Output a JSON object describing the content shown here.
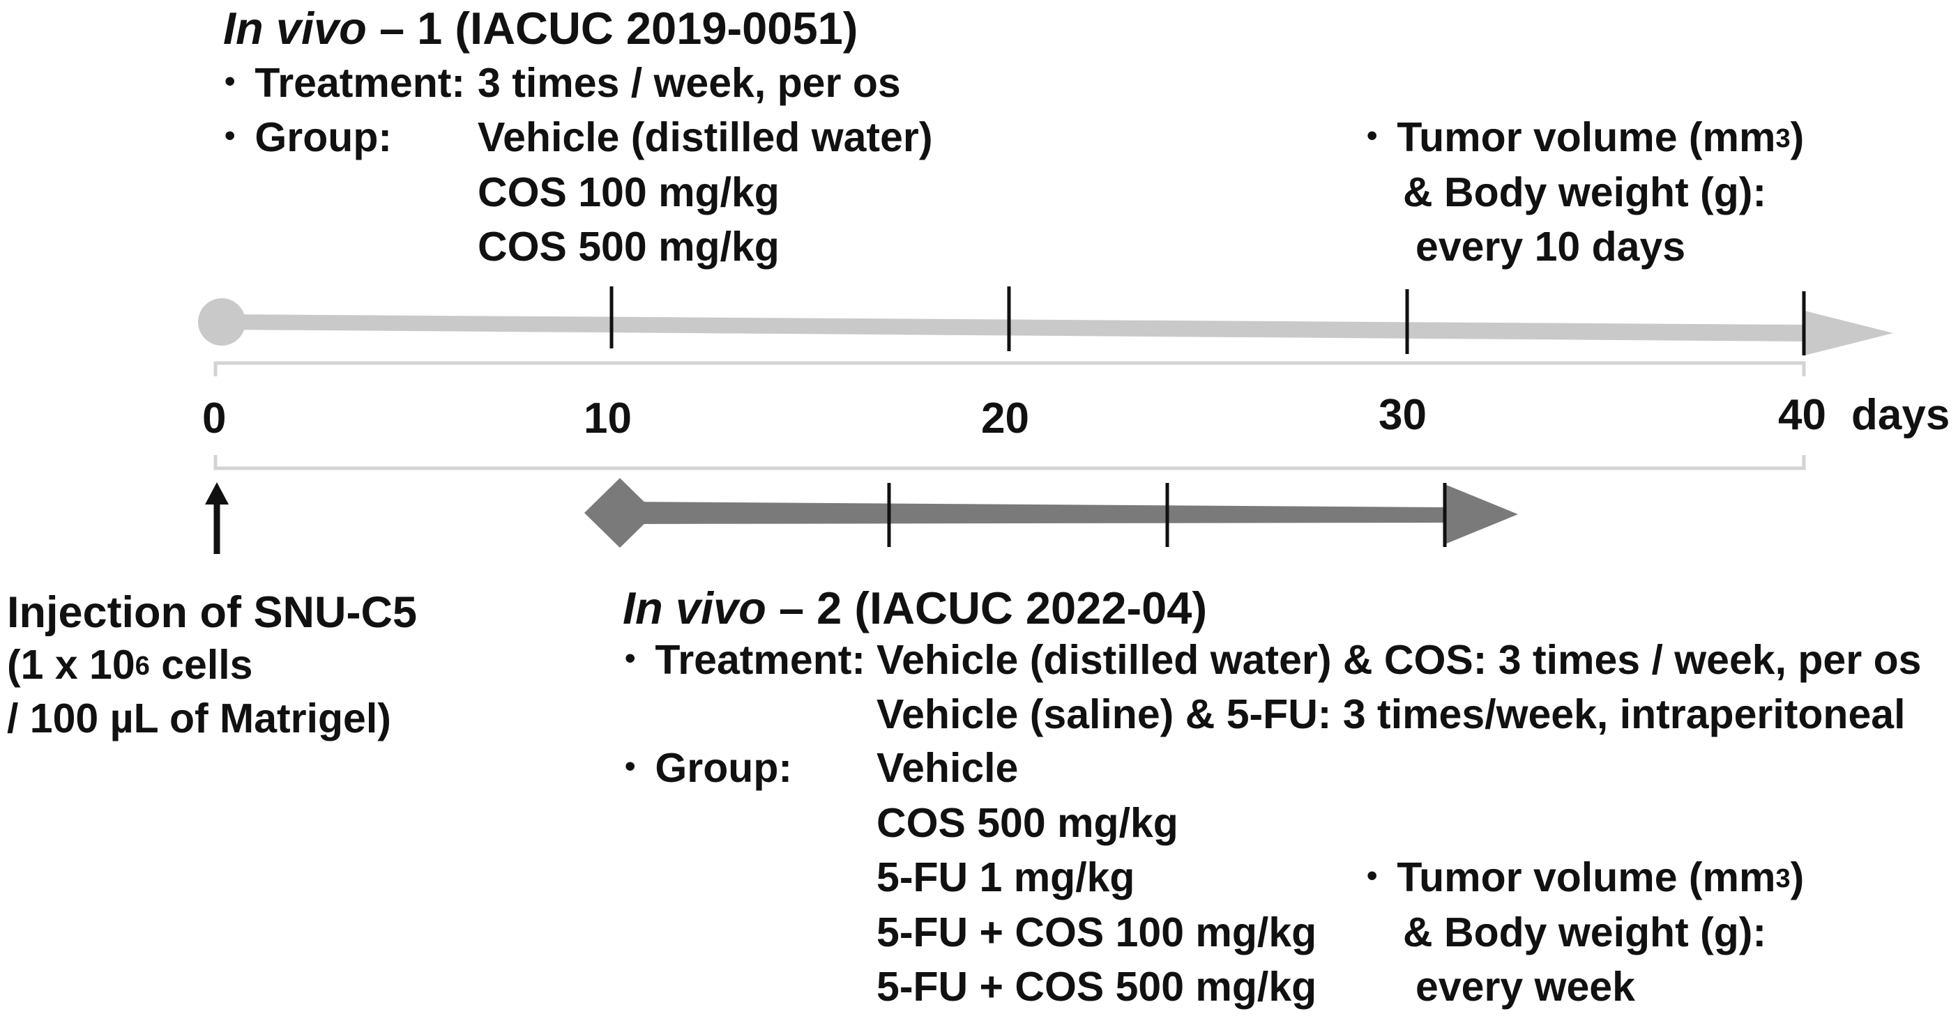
{
  "colors": {
    "study1_arrow": "#c9c9c9",
    "study2_arrow": "#7a7a7a",
    "bracket": "#d3d3d3",
    "tick_marks": "#111111"
  },
  "study1": {
    "title_italic": "In vivo",
    "title_rest": " – 1 (IACUC 2019-0051)",
    "treatment_label": "Treatment:",
    "treatment_value": "3 times / week, per os",
    "group_label": "Group:",
    "groups": [
      "Vehicle (distilled water)",
      "COS 100 mg/kg",
      "COS 500 mg/kg"
    ],
    "measure_prefix": "Tumor volume (mm",
    "measure_sup": "3",
    "measure_suffix": ")",
    "measure_line2": "& Body weight (g):",
    "measure_line3": "every 10 days"
  },
  "axis": {
    "ticks": [
      "0",
      "10",
      "20",
      "30",
      "40"
    ],
    "unit": "days"
  },
  "injection": {
    "line1": "Injection of SNU-C5",
    "line2_prefix": "(1 x 10",
    "line2_sup": "6",
    "line2_suffix": " cells",
    "line3": "/ 100 µL of Matrigel)"
  },
  "study2": {
    "title_italic": "In vivo",
    "title_rest": " – 2 (IACUC 2022-04)",
    "treatment_label": "Treatment:",
    "treatment_values": [
      "Vehicle (distilled water) & COS: 3 times / week, per os",
      "Vehicle (saline) & 5-FU: 3 times/week, intraperitoneal"
    ],
    "group_label": "Group:",
    "groups": [
      "Vehicle",
      "COS 500 mg/kg",
      "5-FU 1 mg/kg",
      "5-FU + COS 100 mg/kg",
      "5-FU + COS 500 mg/kg"
    ],
    "measure_prefix": "Tumor volume (mm",
    "measure_sup": "3",
    "measure_suffix": ")",
    "measure_line2": "& Body weight (g):",
    "measure_line3": "every week"
  }
}
